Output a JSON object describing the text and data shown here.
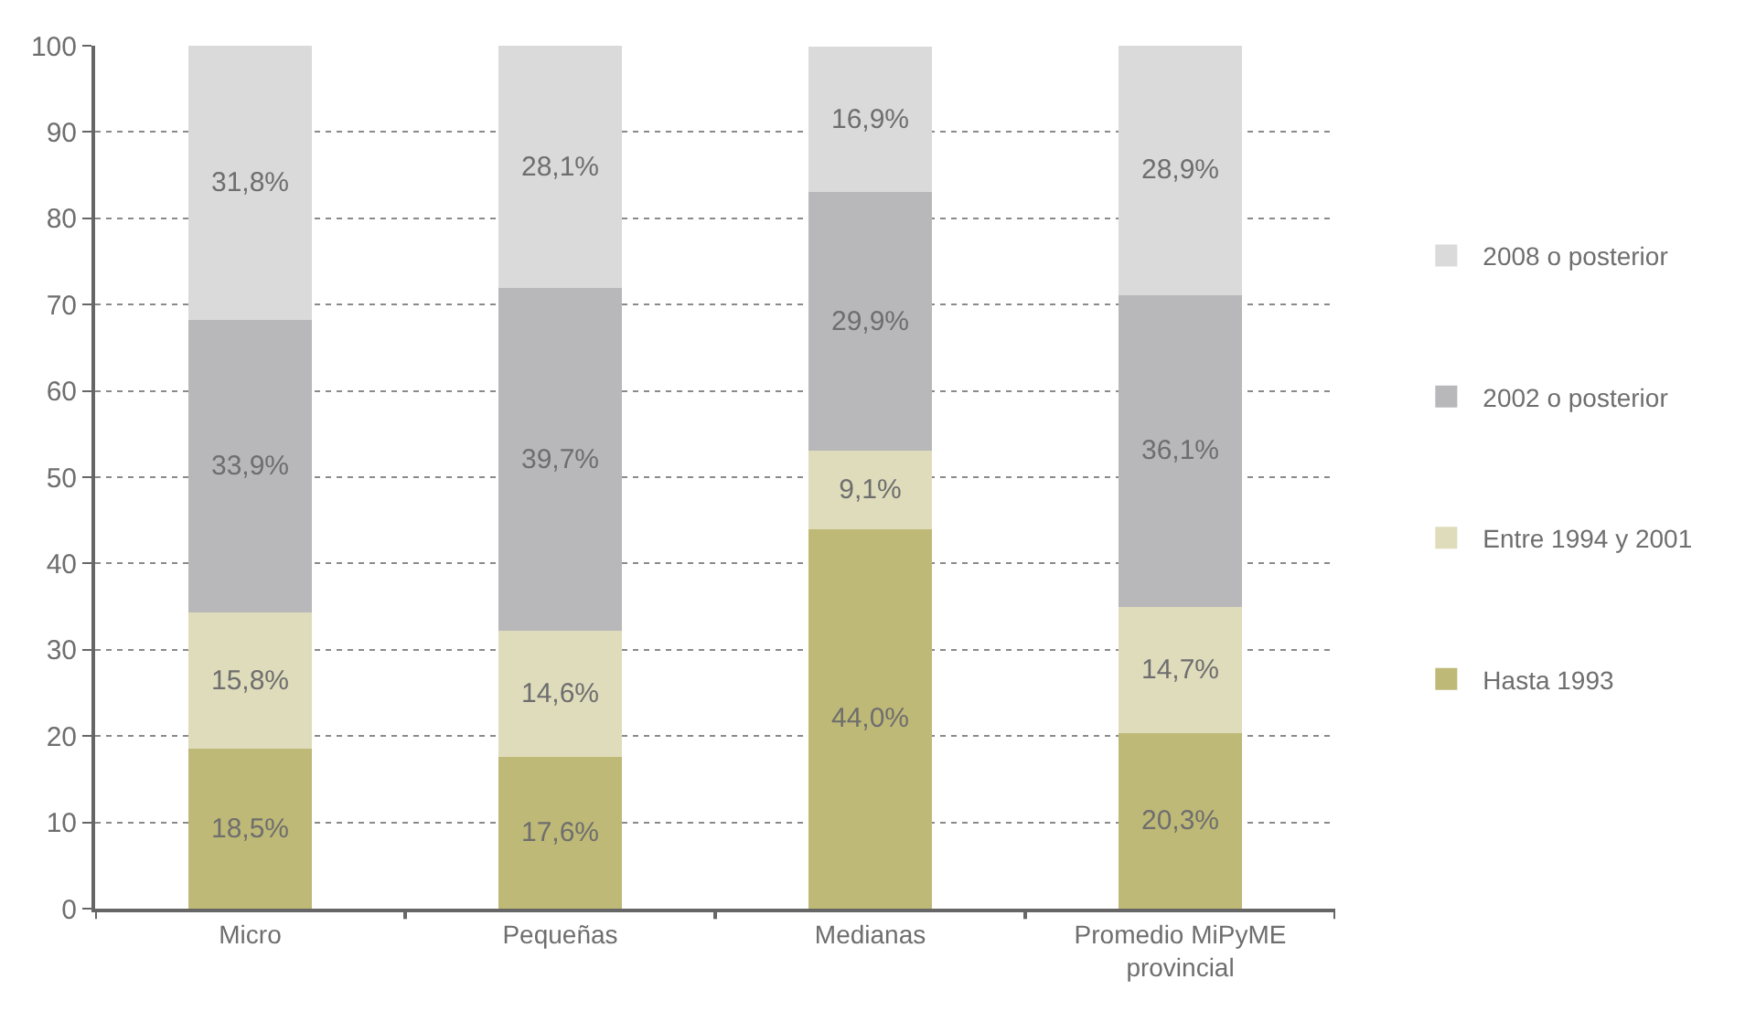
{
  "chart_data": {
    "type": "bar",
    "stacked": true,
    "categories": [
      "Micro",
      "Pequeñas",
      "Medianas",
      "Promedio MiPyME provincial"
    ],
    "series": [
      {
        "name": "Hasta 1993",
        "color": "#bfb977",
        "values": [
          18.5,
          17.6,
          44.0,
          20.3
        ],
        "value_labels": [
          "18,5%",
          "17,6%",
          "44,0%",
          "20,3%"
        ]
      },
      {
        "name": "Entre 1994 y 2001",
        "color": "#dfdcbc",
        "values": [
          15.8,
          14.6,
          9.1,
          14.7
        ],
        "value_labels": [
          "15,8%",
          "14,6%",
          "9,1%",
          "14,7%"
        ]
      },
      {
        "name": "2002 o posterior",
        "color": "#b8b8ba",
        "values": [
          33.9,
          39.7,
          29.9,
          36.1
        ],
        "value_labels": [
          "33,9%",
          "39,7%",
          "29,9%",
          "36,1%"
        ]
      },
      {
        "name": "2008 o posterior",
        "color": "#dadada",
        "values": [
          31.8,
          28.1,
          16.9,
          28.9
        ],
        "value_labels": [
          "31,8%",
          "28,1%",
          "16,9%",
          "28,9%"
        ]
      }
    ],
    "ylim": [
      0,
      100
    ],
    "yticks": [
      0,
      10,
      20,
      30,
      40,
      50,
      60,
      70,
      80,
      90,
      100
    ],
    "grid": "y",
    "legend": "right"
  }
}
